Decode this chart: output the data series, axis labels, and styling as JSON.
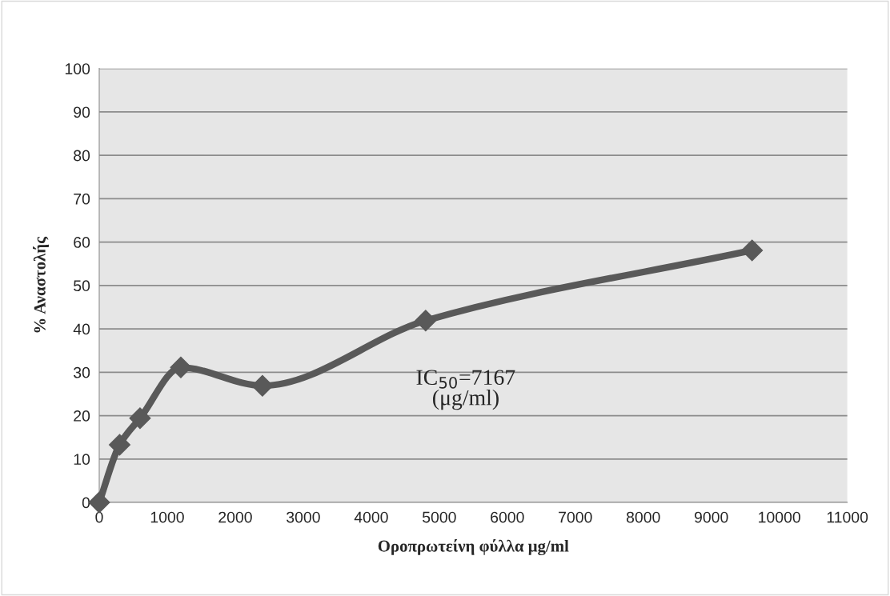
{
  "chart_data": {
    "type": "line",
    "xlabel": "Οροπρωτείνη φύλλα μg/ml",
    "ylabel": "% Αναστολής",
    "x": [
      0,
      300,
      600,
      1200,
      2400,
      4800,
      9600
    ],
    "series": [
      {
        "color": "#595959",
        "values": [
          0,
          13.3,
          19.4,
          31.1,
          26.9,
          41.9,
          58.1
        ]
      }
    ],
    "xlim": [
      0,
      11000
    ],
    "xticks": [
      0,
      1000,
      2000,
      3000,
      4000,
      5000,
      6000,
      7000,
      8000,
      9000,
      10000,
      11000
    ],
    "ylim": [
      0,
      100
    ],
    "yticks": [
      0,
      10,
      20,
      30,
      40,
      50,
      60,
      70,
      80,
      90,
      100
    ],
    "grid": "y",
    "marker": "diamond",
    "line_style": "solid",
    "legend": false,
    "annotations": [
      "IC$_{50}$=7167\n(μg/ml)"
    ]
  }
}
